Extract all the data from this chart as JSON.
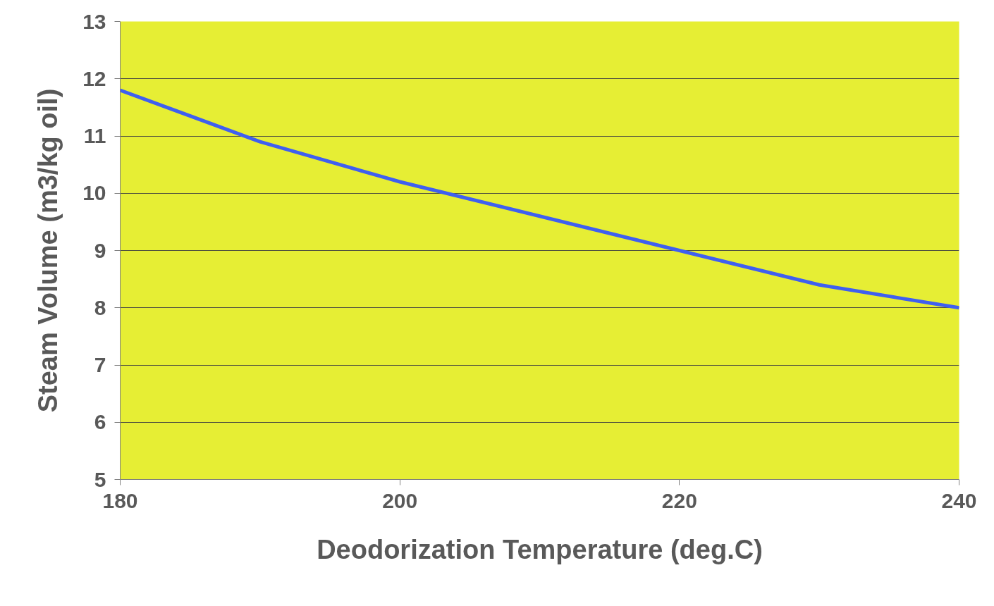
{
  "chart_data": {
    "type": "line",
    "xlabel": "Deodorization Temperature (deg.C)",
    "ylabel": "Steam Volume (m3/kg oil)",
    "x": [
      180,
      190,
      200,
      210,
      220,
      230,
      240
    ],
    "series": [
      {
        "color": "#3f5ff0",
        "values": [
          11.8,
          10.9,
          10.2,
          9.6,
          9.0,
          8.4,
          8.0
        ]
      }
    ],
    "xlim": [
      180,
      240
    ],
    "ylim": [
      5,
      13
    ],
    "xticks": [
      180,
      200,
      220,
      240
    ],
    "yticks": [
      5,
      6,
      7,
      8,
      9,
      10,
      11,
      12,
      13
    ],
    "grid": "y",
    "marker": "none",
    "line_style": "solid"
  }
}
